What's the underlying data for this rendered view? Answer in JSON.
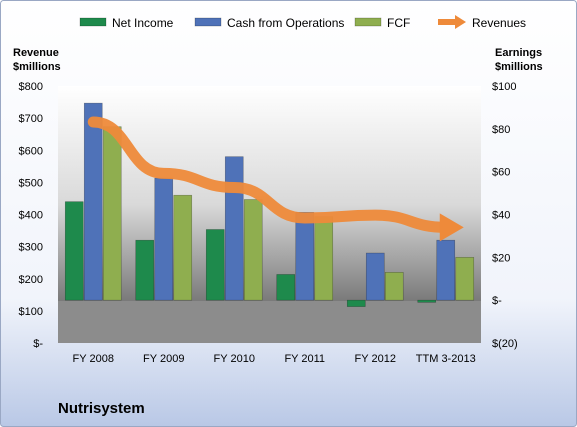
{
  "chart_data": {
    "type": "bar",
    "title": "Nutrisystem",
    "categories": [
      "FY 2008",
      "FY 2009",
      "FY 2010",
      "FY 2011",
      "FY 2012",
      "TTM 3-2013"
    ],
    "left_axis": {
      "label_line1": "Revenue",
      "label_line2": "$millions",
      "ylim": [
        0,
        800
      ],
      "ticks": [
        {
          "value": 0,
          "label": "$-"
        },
        {
          "value": 100,
          "label": "$100"
        },
        {
          "value": 200,
          "label": "$200"
        },
        {
          "value": 300,
          "label": "$300"
        },
        {
          "value": 400,
          "label": "$400"
        },
        {
          "value": 500,
          "label": "$500"
        },
        {
          "value": 600,
          "label": "$600"
        },
        {
          "value": 700,
          "label": "$700"
        },
        {
          "value": 800,
          "label": "$800"
        }
      ]
    },
    "right_axis": {
      "label_line1": "Earnings",
      "label_line2": "$millions",
      "ylim": [
        -20,
        100
      ],
      "ticks": [
        {
          "value": -20,
          "label": "$(20)"
        },
        {
          "value": 0,
          "label": "$-"
        },
        {
          "value": 20,
          "label": "$20"
        },
        {
          "value": 40,
          "label": "$40"
        },
        {
          "value": 60,
          "label": "$60"
        },
        {
          "value": 80,
          "label": "$80"
        },
        {
          "value": 100,
          "label": "$100"
        }
      ]
    },
    "bar_series": [
      {
        "name": "Net Income",
        "color": "#1e8a4c",
        "values": [
          46,
          28,
          33,
          12,
          -3,
          -1
        ]
      },
      {
        "name": "Cash from Operations",
        "color": "#4f72b8",
        "values": [
          92,
          57,
          67,
          41,
          22,
          28
        ]
      },
      {
        "name": "FCF",
        "color": "#8fae4f",
        "values": [
          81,
          49,
          47,
          39,
          13,
          20
        ]
      }
    ],
    "line_series": {
      "name": "Revenues",
      "color": "#ee8a3a",
      "values": [
        688,
        528,
        484,
        389,
        398,
        360
      ]
    },
    "legend_position": "top",
    "grid": false
  }
}
